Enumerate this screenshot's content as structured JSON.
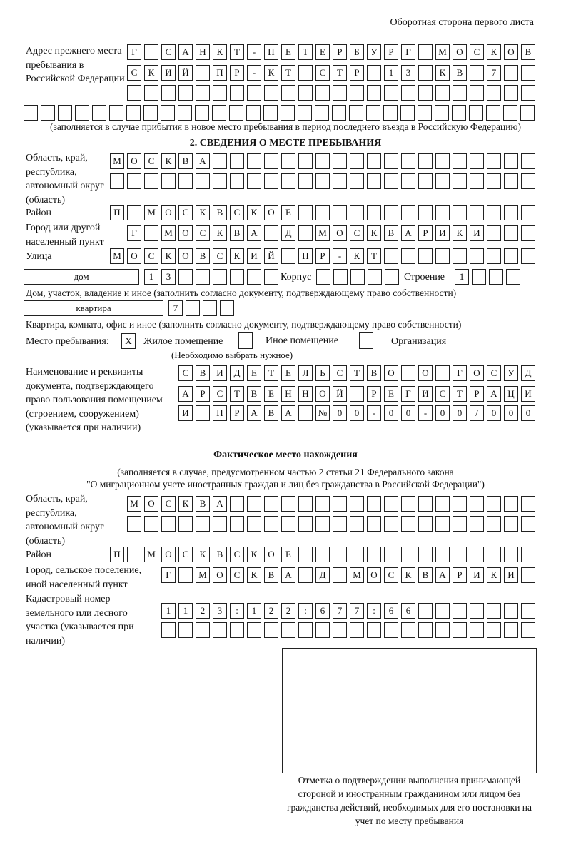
{
  "header": {
    "side_label": "Оборотная сторона первого листа"
  },
  "prev_address": {
    "label": "Адрес прежнего места пребывания в Российской Федерации",
    "rows": [
      [
        "Г",
        "",
        "С",
        "А",
        "Н",
        "К",
        "Т",
        "-",
        "П",
        "Е",
        "Т",
        "Е",
        "Р",
        "Б",
        "У",
        "Р",
        "Г",
        "",
        "М",
        "О",
        "С",
        "К",
        "О",
        "В"
      ],
      [
        "С",
        "К",
        "И",
        "Й",
        "",
        "П",
        "Р",
        "-",
        "К",
        "Т",
        "",
        "С",
        "Т",
        "Р",
        "",
        "1",
        "3",
        "",
        "К",
        "В",
        "",
        "7",
        "",
        ""
      ],
      [
        "",
        "",
        "",
        "",
        "",
        "",
        "",
        "",
        "",
        "",
        "",
        "",
        "",
        "",
        "",
        "",
        "",
        "",
        "",
        "",
        "",
        "",
        "",
        ""
      ],
      [
        "",
        "",
        "",
        "",
        "",
        "",
        "",
        "",
        "",
        "",
        "",
        "",
        "",
        "",
        "",
        "",
        "",
        "",
        "",
        "",
        "",
        "",
        "",
        "",
        "",
        "",
        "",
        "",
        "",
        ""
      ]
    ],
    "note": "(заполняется в случае прибытия в новое место пребывания в период последнего въезда в Российскую Федерацию)"
  },
  "section2": {
    "title": "2. СВЕДЕНИЯ О МЕСТЕ ПРЕБЫВАНИЯ",
    "region_label": "Область, край, республика, автономный округ (область)",
    "region_rows": [
      [
        "М",
        "О",
        "С",
        "К",
        "В",
        "А",
        "",
        "",
        "",
        "",
        "",
        "",
        "",
        "",
        "",
        "",
        "",
        "",
        "",
        "",
        "",
        "",
        "",
        "",
        ""
      ],
      [
        "",
        "",
        "",
        "",
        "",
        "",
        "",
        "",
        "",
        "",
        "",
        "",
        "",
        "",
        "",
        "",
        "",
        "",
        "",
        "",
        "",
        "",
        "",
        "",
        ""
      ]
    ],
    "district_label": "Район",
    "district_row": [
      "П",
      "",
      "М",
      "О",
      "С",
      "К",
      "В",
      "С",
      "К",
      "О",
      "Е",
      "",
      "",
      "",
      "",
      "",
      "",
      "",
      "",
      "",
      "",
      "",
      "",
      "",
      ""
    ],
    "city_label": "Город или другой населенный пункт",
    "city_row": [
      "Г",
      "",
      "М",
      "О",
      "С",
      "К",
      "В",
      "А",
      "",
      "Д",
      "",
      "М",
      "О",
      "С",
      "К",
      "В",
      "А",
      "Р",
      "И",
      "К",
      "И",
      "",
      "",
      ""
    ],
    "street_label": "Улица",
    "street_row": [
      "М",
      "О",
      "С",
      "К",
      "О",
      "В",
      "С",
      "К",
      "И",
      "Й",
      "",
      "П",
      "Р",
      "-",
      "К",
      "Т",
      "",
      "",
      "",
      "",
      "",
      "",
      "",
      "",
      ""
    ],
    "house_type": "дом",
    "house_row": [
      "1",
      "3",
      "",
      "",
      "",
      "",
      "",
      ""
    ],
    "korpus_label": "Корпус",
    "korpus_row": [
      "",
      "",
      "",
      "",
      ""
    ],
    "building_label": "Строение",
    "building_row": [
      "1",
      "",
      "",
      ""
    ],
    "house_note": "Дом, участок, владение и иное (заполнить согласно документу, подтверждающему право собственности)",
    "flat_type": "квартира",
    "flat_row": [
      "7",
      "",
      "",
      ""
    ],
    "flat_note": "Квартира, комната, офис и иное (заполнить согласно документу, подтверждающему право собственности)",
    "stay_label": "Место пребывания:",
    "stay_options": [
      {
        "label": "Жилое помещение",
        "mark": "X"
      },
      {
        "label": "Иное помещение",
        "mark": ""
      },
      {
        "label": "Организация",
        "mark": ""
      }
    ],
    "stay_note": "(Необходимо выбрать нужное)",
    "doc_label": "Наименование и реквизиты документа, подтверждающего право пользования помещением (строением, сооружением) (указывается при наличии)",
    "doc_rows": [
      [
        "С",
        "В",
        "И",
        "Д",
        "Е",
        "Т",
        "Е",
        "Л",
        "Ь",
        "С",
        "Т",
        "В",
        "О",
        "",
        "О",
        "",
        "Г",
        "О",
        "С",
        "У",
        "Д"
      ],
      [
        "А",
        "Р",
        "С",
        "Т",
        "В",
        "Е",
        "Н",
        "Н",
        "О",
        "Й",
        "",
        "Р",
        "Е",
        "Г",
        "И",
        "С",
        "Т",
        "Р",
        "А",
        "Ц",
        "И"
      ],
      [
        "И",
        "",
        "П",
        "Р",
        "А",
        "В",
        "А",
        "",
        "№",
        "0",
        "0",
        "-",
        "0",
        "0",
        "-",
        "0",
        "0",
        "/",
        "0",
        "0",
        "0"
      ]
    ]
  },
  "actual": {
    "title": "Фактическое место нахождения",
    "note1": "(заполняется в случае, предусмотренном частью 2 статьи 21 Федерального закона",
    "note2": "\"О миграционном учете иностранных граждан и лиц без гражданства в Российской Федерации\")",
    "region_label": "Область, край, республика, автономный округ (область)",
    "region_rows": [
      [
        "М",
        "О",
        "С",
        "К",
        "В",
        "А",
        "",
        "",
        "",
        "",
        "",
        "",
        "",
        "",
        "",
        "",
        "",
        "",
        "",
        "",
        "",
        "",
        "",
        ""
      ],
      [
        "",
        "",
        "",
        "",
        "",
        "",
        "",
        "",
        "",
        "",
        "",
        "",
        "",
        "",
        "",
        "",
        "",
        "",
        "",
        "",
        "",
        "",
        "",
        ""
      ]
    ],
    "district_label": "Район",
    "district_row": [
      "П",
      "",
      "М",
      "О",
      "С",
      "К",
      "В",
      "С",
      "К",
      "О",
      "Е",
      "",
      "",
      "",
      "",
      "",
      "",
      "",
      "",
      "",
      "",
      "",
      "",
      "",
      ""
    ],
    "city_label": "Город, сельское поселение, иной населенный пункт",
    "city_row": [
      "Г",
      "",
      "М",
      "О",
      "С",
      "К",
      "В",
      "А",
      "",
      "Д",
      "",
      "М",
      "О",
      "С",
      "К",
      "В",
      "А",
      "Р",
      "И",
      "К",
      "И",
      ""
    ],
    "cadastral_label": "Кадастровый номер земельного или лесного участка (указывается при наличии)",
    "cadastral_rows": [
      [
        "1",
        "1",
        "2",
        "3",
        ":",
        "1",
        "2",
        "2",
        ":",
        "6",
        "7",
        "7",
        ":",
        "6",
        "6",
        "",
        "",
        "",
        "",
        "",
        "",
        ""
      ],
      [
        "",
        "",
        "",
        "",
        "",
        "",
        "",
        "",
        "",
        "",
        "",
        "",
        "",
        "",
        "",
        "",
        "",
        "",
        "",
        "",
        "",
        ""
      ]
    ]
  },
  "stamp": {
    "caption": "Отметка о подтверждении выполнения принимающей стороной и иностранным гражданином или лицом без гражданства действий, необходимых для его постановки на учет по месту пребывания"
  }
}
